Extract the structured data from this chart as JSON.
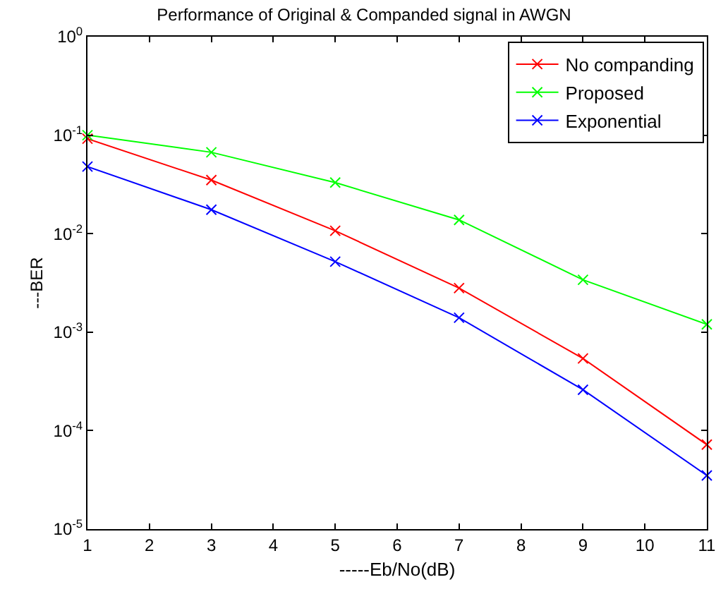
{
  "chart_data": {
    "type": "line",
    "title": "Performance of Original & Companded signal in AWGN",
    "xlabel": "-----Eb/No(dB)",
    "ylabel": "---BER",
    "x": [
      1,
      3,
      5,
      7,
      9,
      11
    ],
    "series": [
      {
        "name": "No companding",
        "color": "#ff0000",
        "values": [
          0.092,
          0.035,
          0.0107,
          0.0028,
          0.00054,
          7.2e-05
        ]
      },
      {
        "name": "Proposed",
        "color": "#00ff00",
        "values": [
          0.1,
          0.067,
          0.033,
          0.0138,
          0.0034,
          0.0012
        ]
      },
      {
        "name": "Exponential",
        "color": "#0000ff",
        "values": [
          0.048,
          0.0175,
          0.0052,
          0.0014,
          0.00026,
          3.5e-05
        ]
      }
    ],
    "xlim": [
      1,
      11
    ],
    "xticks": [
      1,
      2,
      3,
      4,
      5,
      6,
      7,
      8,
      9,
      10,
      11
    ],
    "ylim": [
      1e-05,
      1
    ],
    "yticks": [
      {
        "value": 1e-05,
        "label": "10$^{-5}$"
      },
      {
        "value": 0.0001,
        "label": "10$^{-4}$"
      },
      {
        "value": 0.001,
        "label": "10$^{-3}$"
      },
      {
        "value": 0.01,
        "label": "10$^{-2}$"
      },
      {
        "value": 0.1,
        "label": "10$^{-1}$"
      },
      {
        "value": 1,
        "label": "10$^{0}$"
      }
    ],
    "log": "y",
    "legend": "top right",
    "marker": "cross",
    "line_style": "solid"
  }
}
